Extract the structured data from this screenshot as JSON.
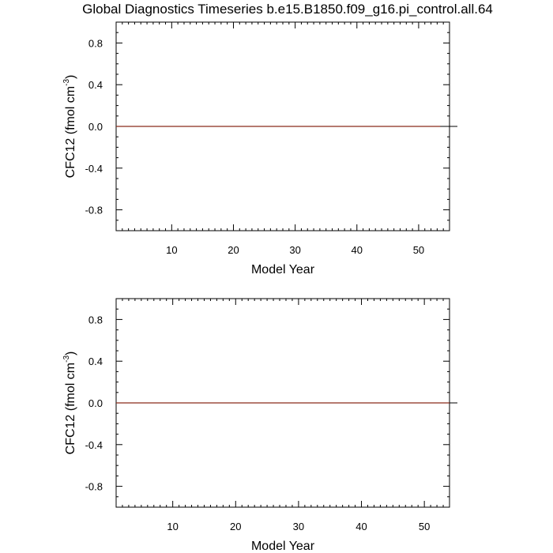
{
  "title": "Global Diagnostics Timeseries b.e15.B1850.f09_g16.pi_control.all.64",
  "colors": {
    "series": "#8b2b1b",
    "axes": "#000000"
  },
  "chart_data": [
    {
      "type": "line",
      "xlabel": "Model Year",
      "ylabel": {
        "main": "CFC12 (fmol cm",
        "exp": "-3",
        "close": ")"
      },
      "xlim": [
        1,
        55
      ],
      "ylim": [
        -1,
        1
      ],
      "xticks": [
        10,
        20,
        30,
        40,
        50
      ],
      "yticks": [
        -0.8,
        -0.4,
        0.0,
        0.4,
        0.8
      ],
      "ytick_labels": [
        "-0.8",
        "-0.4",
        "0.0",
        "0.4",
        "0.8"
      ],
      "series": [
        {
          "x": [
            1,
            53.5
          ],
          "y": [
            0,
            0
          ]
        }
      ]
    },
    {
      "type": "line",
      "xlabel": "Model Year",
      "ylabel": {
        "main": "CFC12 (fmol cm",
        "exp": "-3",
        "close": ")"
      },
      "xlim": [
        1,
        54
      ],
      "ylim": [
        -1,
        1
      ],
      "xticks": [
        10,
        20,
        30,
        40,
        50
      ],
      "yticks": [
        -0.8,
        -0.4,
        0.0,
        0.4,
        0.8
      ],
      "ytick_labels": [
        "-0.8",
        "-0.4",
        "0.0",
        "0.4",
        "0.8"
      ],
      "series": [
        {
          "x": [
            1,
            54
          ],
          "y": [
            0,
            0
          ]
        }
      ]
    }
  ]
}
